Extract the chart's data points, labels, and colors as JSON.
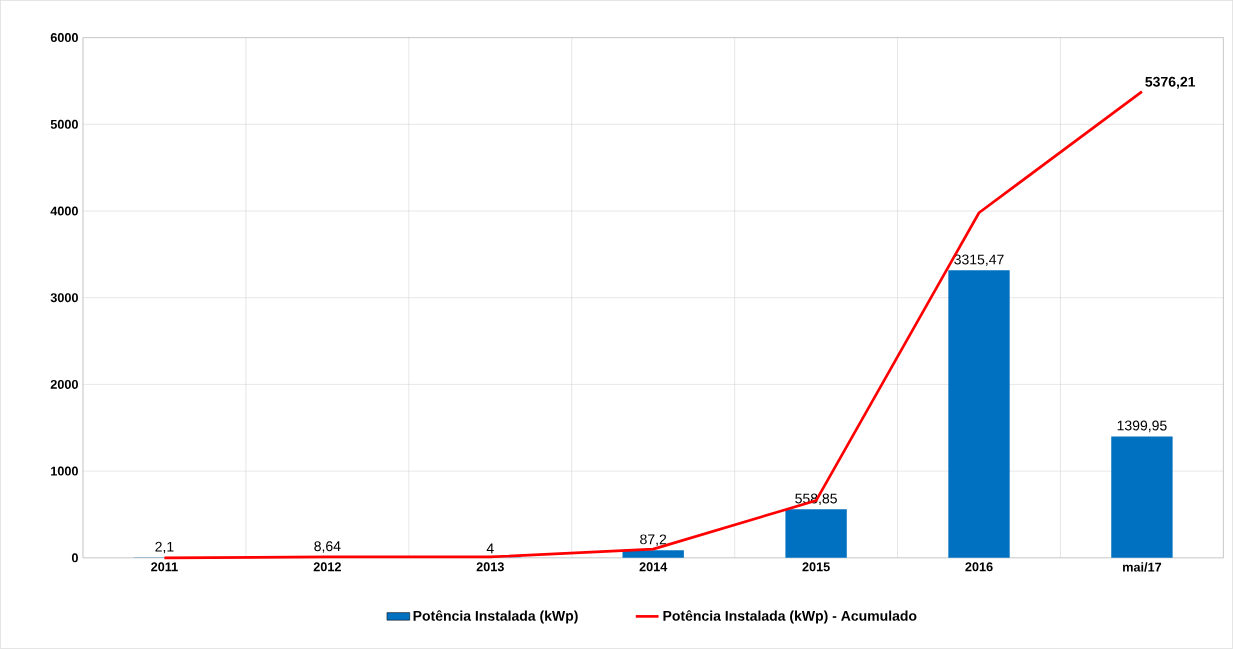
{
  "chart_data": {
    "type": "bar",
    "categories": [
      "2011",
      "2012",
      "2013",
      "2014",
      "2015",
      "2016",
      "mai/17"
    ],
    "series": [
      {
        "name": "Potência Instalada (kWp)",
        "color": "#0070c0",
        "values": [
          2.1,
          8.64,
          4,
          87.2,
          558.85,
          3315.47,
          1399.95
        ],
        "value_labels": [
          "2,1",
          "8,64",
          "4",
          "87,2",
          "558,85",
          "3315,47",
          "1399,95"
        ]
      },
      {
        "name": "Potência Instalada (kWp) - Acumulado",
        "type": "line",
        "color": "#ff0000",
        "values": [
          0,
          10,
          10,
          100,
          660,
          3980,
          5376.21
        ],
        "value_labels": [
          null,
          null,
          null,
          null,
          null,
          null,
          "5376,21"
        ]
      }
    ],
    "ylim": [
      0,
      6000
    ],
    "yticks": [
      0,
      1000,
      2000,
      3000,
      4000,
      5000,
      6000
    ],
    "grid": true,
    "legend": "bottom",
    "marker": "none",
    "line_style": "solid"
  }
}
